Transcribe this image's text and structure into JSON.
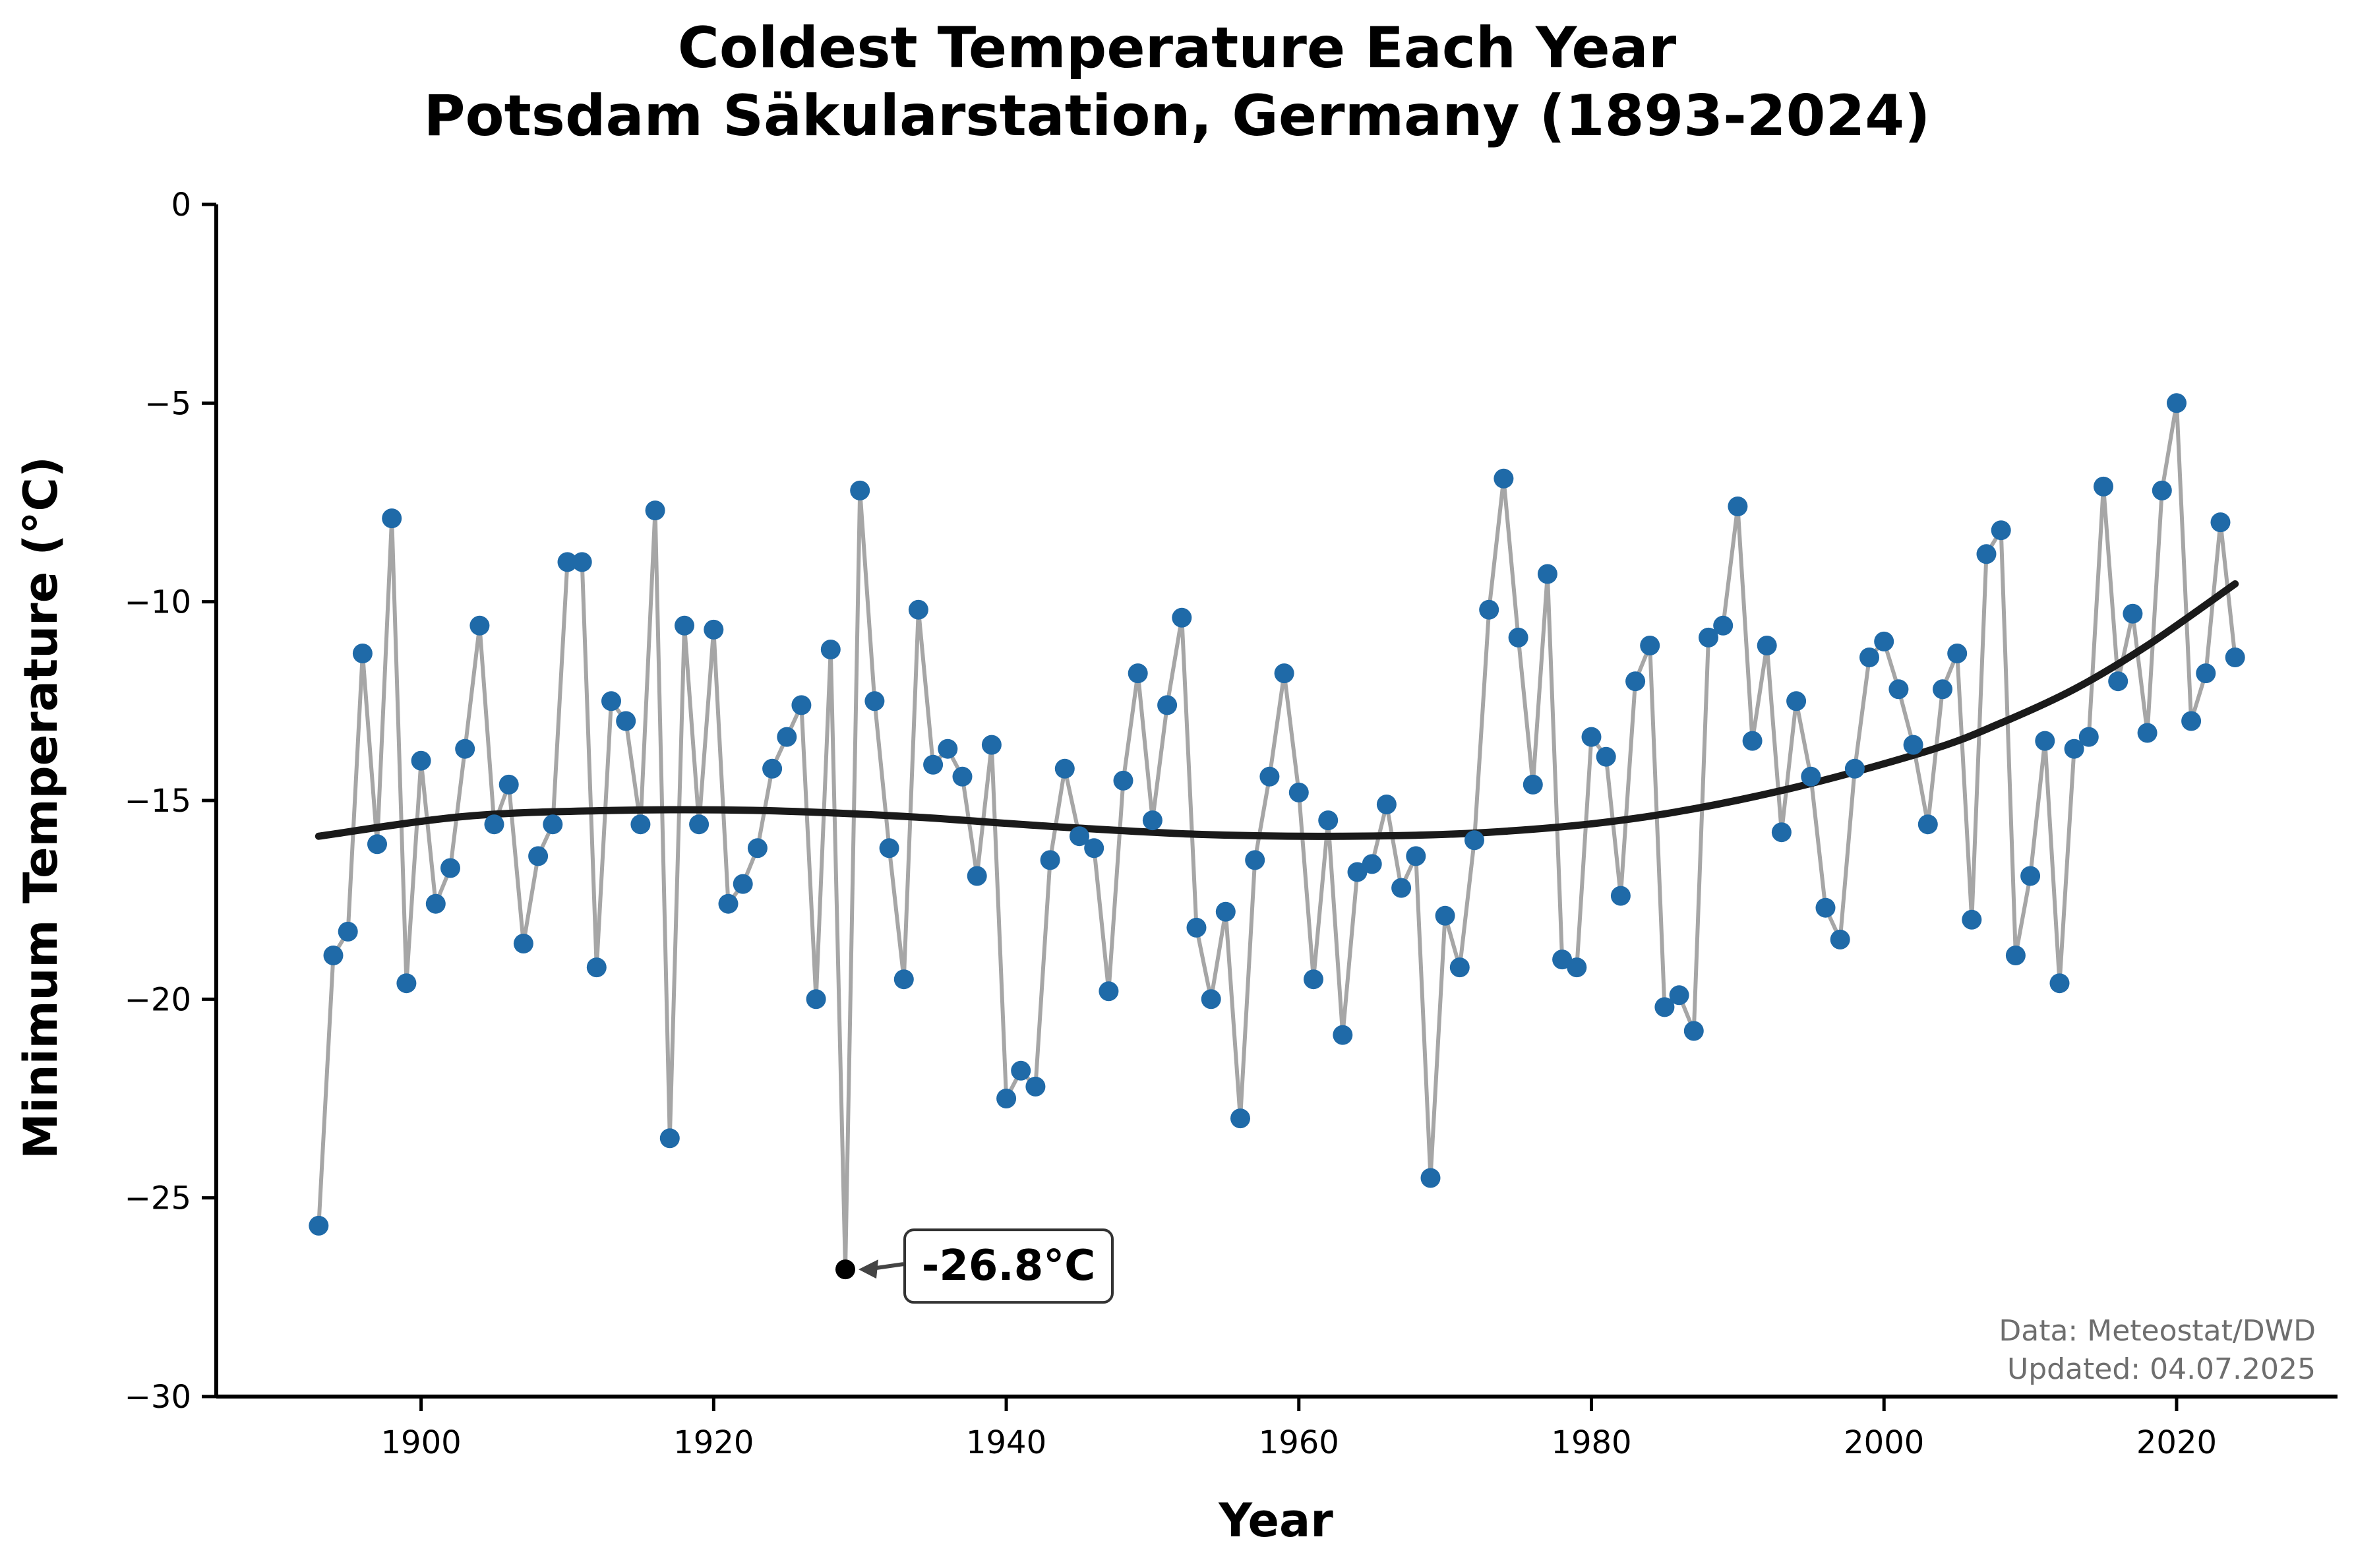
{
  "chart_data": {
    "type": "line",
    "title": "Coldest Temperature Each Year",
    "subtitle": "Potsdam Säkularstation, Germany (1893-2024)",
    "xlabel": "Year",
    "ylabel": "Minimum Temperature (°C)",
    "xlim": [
      1886,
      2031
    ],
    "ylim": [
      -30,
      0
    ],
    "xticks": [
      1900,
      1920,
      1940,
      1960,
      1980,
      2000,
      2020
    ],
    "yticks": [
      0,
      -5,
      -10,
      -15,
      -20,
      -25,
      -30
    ],
    "grid": false,
    "series": [
      {
        "type": "line+markers",
        "line_color": "#a6a6a6",
        "marker_color": "#1f6aa8",
        "x": [
          1893,
          1894,
          1895,
          1896,
          1897,
          1898,
          1899,
          1900,
          1901,
          1902,
          1903,
          1904,
          1905,
          1906,
          1907,
          1908,
          1909,
          1910,
          1911,
          1912,
          1913,
          1914,
          1915,
          1916,
          1917,
          1918,
          1919,
          1920,
          1921,
          1922,
          1923,
          1924,
          1925,
          1926,
          1927,
          1928,
          1929,
          1930,
          1931,
          1932,
          1933,
          1934,
          1935,
          1936,
          1937,
          1938,
          1939,
          1940,
          1941,
          1942,
          1943,
          1944,
          1945,
          1946,
          1947,
          1948,
          1949,
          1950,
          1951,
          1952,
          1953,
          1954,
          1955,
          1956,
          1957,
          1958,
          1959,
          1960,
          1961,
          1962,
          1963,
          1964,
          1965,
          1966,
          1967,
          1968,
          1969,
          1970,
          1971,
          1972,
          1973,
          1974,
          1975,
          1976,
          1977,
          1978,
          1979,
          1980,
          1981,
          1982,
          1983,
          1984,
          1985,
          1986,
          1987,
          1988,
          1989,
          1990,
          1991,
          1992,
          1993,
          1994,
          1995,
          1996,
          1997,
          1998,
          1999,
          2000,
          2001,
          2002,
          2003,
          2004,
          2005,
          2006,
          2007,
          2008,
          2009,
          2010,
          2011,
          2012,
          2013,
          2014,
          2015,
          2016,
          2017,
          2018,
          2019,
          2020,
          2021,
          2022,
          2023,
          2024
        ],
        "y": [
          -25.7,
          -18.9,
          -18.3,
          -11.3,
          -16.1,
          -7.9,
          -19.6,
          -14.0,
          -17.6,
          -16.7,
          -13.7,
          -10.6,
          -15.6,
          -14.6,
          -18.6,
          -16.4,
          -15.6,
          -9.0,
          -9.0,
          -19.2,
          -12.5,
          -13.0,
          -15.6,
          -7.7,
          -23.5,
          -10.6,
          -15.6,
          -10.7,
          -17.6,
          -17.1,
          -16.2,
          -14.2,
          -13.4,
          -12.6,
          -20.0,
          -11.2,
          -26.8,
          -7.2,
          -12.5,
          -16.2,
          -19.5,
          -10.2,
          -14.1,
          -13.7,
          -14.4,
          -16.9,
          -13.6,
          -22.5,
          -21.8,
          -22.2,
          -16.5,
          -14.2,
          -15.9,
          -16.2,
          -19.8,
          -14.5,
          -11.8,
          -15.5,
          -12.6,
          -10.4,
          -18.2,
          -20.0,
          -17.8,
          -23.0,
          -16.5,
          -14.4,
          -11.8,
          -14.8,
          -19.5,
          -15.5,
          -20.9,
          -16.8,
          -16.6,
          -15.1,
          -17.2,
          -16.4,
          -24.5,
          -17.9,
          -19.2,
          -16.0,
          -10.2,
          -6.9,
          -10.9,
          -14.6,
          -9.3,
          -19.0,
          -19.2,
          -13.4,
          -13.9,
          -17.4,
          -12.0,
          -11.1,
          -20.2,
          -19.9,
          -20.8,
          -10.9,
          -10.6,
          -7.6,
          -13.5,
          -11.1,
          -15.8,
          -12.5,
          -14.4,
          -17.7,
          -18.5,
          -14.2,
          -11.4,
          -11.0,
          -12.2,
          -13.6,
          -15.6,
          -12.2,
          -11.3,
          -18.0,
          -8.8,
          -8.2,
          -18.9,
          -16.9,
          -13.5,
          -19.6,
          -13.7,
          -13.4,
          -7.1,
          -12.0,
          -10.3,
          -13.3,
          -7.2,
          -5.0,
          -13.0,
          -11.8,
          -8.0,
          -11.4
        ]
      },
      {
        "name": "",
        "type": "trend",
        "line_color": "#1a1a1a",
        "x": [
          1893,
          1903,
          1913,
          1923,
          1933,
          1943,
          1953,
          1963,
          1973,
          1983,
          1993,
          2003,
          2008,
          2013,
          2018,
          2024
        ],
        "y": [
          -15.9,
          -15.4,
          -15.25,
          -15.25,
          -15.4,
          -15.65,
          -15.85,
          -15.9,
          -15.8,
          -15.45,
          -14.75,
          -13.75,
          -13.05,
          -12.2,
          -11.1,
          -9.55
        ]
      }
    ],
    "annotation": {
      "text": "-26.8°C",
      "x": 1929,
      "y": -26.8,
      "marker_color": "#000000"
    },
    "source_lines": [
      "Data: Meteostat/DWD",
      "Updated: 04.07.2025"
    ]
  }
}
